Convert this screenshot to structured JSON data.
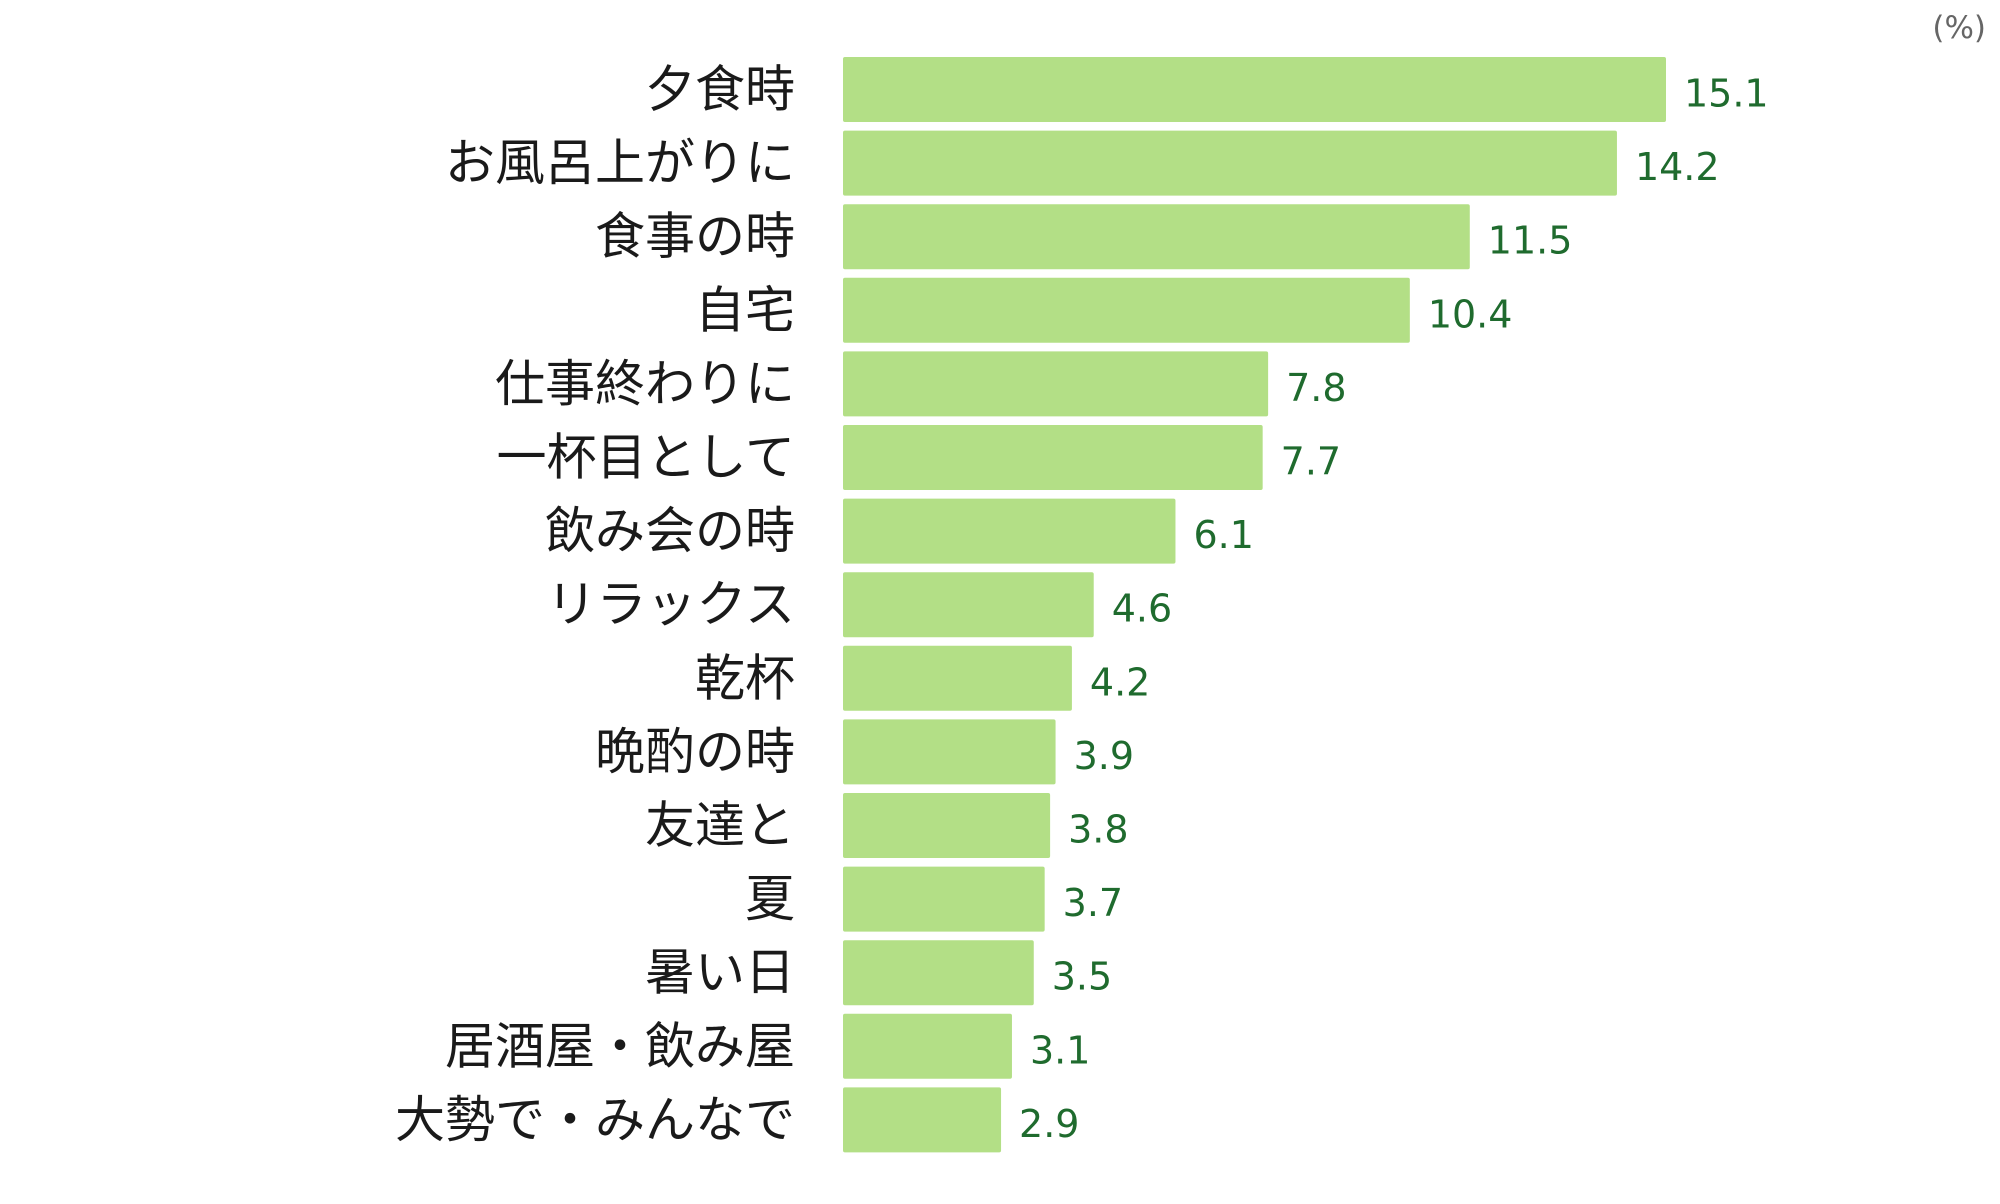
{
  "unit_label": "(%)",
  "colors": {
    "bar": "#b3df86",
    "value_label": "#1f6b2e",
    "category_label": "#1a1a1a",
    "unit_label": "#666666"
  },
  "chart_data": {
    "type": "bar",
    "orientation": "horizontal",
    "categories": [
      "夕食時",
      "お風呂上がりに",
      "食事の時",
      "自宅",
      "仕事終わりに",
      "一杯目として",
      "飲み会の時",
      "リラックス",
      "乾杯",
      "晩酌の時",
      "友達と",
      "夏",
      "暑い日",
      "居酒屋・飲み屋",
      "大勢で・みんなで"
    ],
    "values": [
      15.1,
      14.2,
      11.5,
      10.4,
      7.8,
      7.7,
      6.1,
      4.6,
      4.2,
      3.9,
      3.8,
      3.7,
      3.5,
      3.1,
      2.9
    ],
    "value_labels": [
      "15.1",
      "14.2",
      "11.5",
      "10.4",
      "7.8",
      "7.7",
      "6.1",
      "4.6",
      "4.2",
      "3.9",
      "3.8",
      "3.7",
      "3.5",
      "3.1",
      "2.9"
    ],
    "xlim": [
      0,
      15.1
    ],
    "grid": false,
    "legend": "none"
  }
}
